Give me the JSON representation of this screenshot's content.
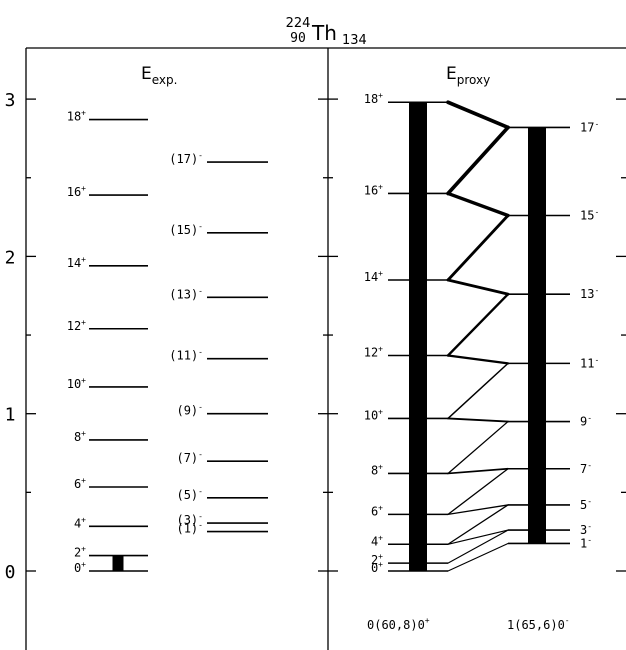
{
  "nucleus": {
    "mass": "224",
    "charge": "90",
    "symbol": "Th",
    "neutrons": "134"
  },
  "yaxis": {
    "ticks": [
      {
        "value": 0,
        "label": "0"
      },
      {
        "value": 1,
        "label": "1"
      },
      {
        "value": 2,
        "label": "2"
      },
      {
        "value": 3,
        "label": "3"
      }
    ]
  },
  "panels": {
    "exp": {
      "title_main": "E",
      "title_sub": "exp."
    },
    "proxy": {
      "title_main": "E",
      "title_sub": "proxy"
    }
  },
  "chart_data": {
    "type": "level-scheme",
    "ylim": [
      -0.3,
      3.3
    ],
    "exp_positive": [
      {
        "j": "0",
        "parity": "+",
        "energy": 0.0
      },
      {
        "j": "2",
        "parity": "+",
        "energy": 0.098
      },
      {
        "j": "4",
        "parity": "+",
        "energy": 0.284
      },
      {
        "j": "6",
        "parity": "+",
        "energy": 0.534
      },
      {
        "j": "8",
        "parity": "+",
        "energy": 0.833
      },
      {
        "j": "10",
        "parity": "+",
        "energy": 1.17
      },
      {
        "j": "12",
        "parity": "+",
        "energy": 1.54
      },
      {
        "j": "14",
        "parity": "+",
        "energy": 1.94
      },
      {
        "j": "16",
        "parity": "+",
        "energy": 2.39
      },
      {
        "j": "18",
        "parity": "+",
        "energy": 2.87
      }
    ],
    "exp_negative": [
      {
        "j": "(1)",
        "parity": "-",
        "energy": 0.251
      },
      {
        "j": "(3)",
        "parity": "-",
        "energy": 0.305
      },
      {
        "j": "(5)",
        "parity": "-",
        "energy": 0.465
      },
      {
        "j": "(7)",
        "parity": "-",
        "energy": 0.698
      },
      {
        "j": "(9)",
        "parity": "-",
        "energy": 1.0
      },
      {
        "j": "(11)",
        "parity": "-",
        "energy": 1.35
      },
      {
        "j": "(13)",
        "parity": "-",
        "energy": 1.74
      },
      {
        "j": "(15)",
        "parity": "-",
        "energy": 2.15
      },
      {
        "j": "(17)",
        "parity": "-",
        "energy": 2.6
      }
    ],
    "exp_transitions": [
      {
        "from": "2+",
        "to": "0+",
        "strength": 1.0
      }
    ],
    "proxy_positive": {
      "band_label": "0(60,8)0",
      "band_label_parity": "+",
      "levels": [
        {
          "j": "0",
          "parity": "+",
          "energy": 0.0
        },
        {
          "j": "2",
          "parity": "+",
          "energy": 0.05
        },
        {
          "j": "4",
          "parity": "+",
          "energy": 0.17
        },
        {
          "j": "6",
          "parity": "+",
          "energy": 0.36
        },
        {
          "j": "8",
          "parity": "+",
          "energy": 0.62
        },
        {
          "j": "10",
          "parity": "+",
          "energy": 0.97
        },
        {
          "j": "12",
          "parity": "+",
          "energy": 1.37
        },
        {
          "j": "14",
          "parity": "+",
          "energy": 1.85
        },
        {
          "j": "16",
          "parity": "+",
          "energy": 2.4
        },
        {
          "j": "18",
          "parity": "+",
          "energy": 2.98
        }
      ]
    },
    "proxy_negative": {
      "band_label": "1(65,6)0",
      "band_label_parity": "-",
      "levels": [
        {
          "j": "1",
          "parity": "-",
          "energy": 0.175
        },
        {
          "j": "3",
          "parity": "-",
          "energy": 0.26
        },
        {
          "j": "5",
          "parity": "-",
          "energy": 0.42
        },
        {
          "j": "7",
          "parity": "-",
          "energy": 0.65
        },
        {
          "j": "9",
          "parity": "-",
          "energy": 0.95
        },
        {
          "j": "11",
          "parity": "-",
          "energy": 1.32
        },
        {
          "j": "13",
          "parity": "-",
          "energy": 1.76
        },
        {
          "j": "15",
          "parity": "-",
          "energy": 2.26
        },
        {
          "j": "17",
          "parity": "-",
          "energy": 2.82
        }
      ]
    },
    "proxy_intraband": [
      {
        "band": "positive",
        "from": "2+",
        "to": "0+",
        "strength": 1.0
      },
      {
        "band": "negative",
        "from": "3-",
        "to": "1-",
        "strength": 1.0
      }
    ],
    "proxy_interband": [
      {
        "from": "1-",
        "to": "0+",
        "strength": 0.1
      },
      {
        "from": "3-",
        "to": "2+",
        "strength": 0.1
      },
      {
        "from": "3-",
        "to": "4+",
        "strength": 0.1
      },
      {
        "from": "5-",
        "to": "4+",
        "strength": 0.15
      },
      {
        "from": "5-",
        "to": "6+",
        "strength": 0.15
      },
      {
        "from": "7-",
        "to": "6+",
        "strength": 0.15
      },
      {
        "from": "7-",
        "to": "8+",
        "strength": 0.25
      },
      {
        "from": "9-",
        "to": "8+",
        "strength": 0.15
      },
      {
        "from": "9-",
        "to": "10+",
        "strength": 0.3
      },
      {
        "from": "11-",
        "to": "10+",
        "strength": 0.2
      },
      {
        "from": "11-",
        "to": "12+",
        "strength": 0.45
      },
      {
        "from": "13-",
        "to": "12+",
        "strength": 0.45
      },
      {
        "from": "13-",
        "to": "14+",
        "strength": 0.6
      },
      {
        "from": "15-",
        "to": "14+",
        "strength": 0.6
      },
      {
        "from": "15-",
        "to": "16+",
        "strength": 0.75
      },
      {
        "from": "17-",
        "to": "16+",
        "strength": 0.85
      },
      {
        "from": "17-",
        "to": "18+",
        "strength": 0.85
      }
    ]
  }
}
